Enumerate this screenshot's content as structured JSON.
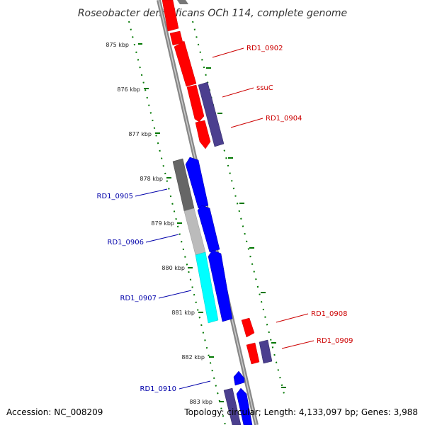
{
  "title": "Roseobacter denitrificans OCh 114, complete genome",
  "footer": {
    "accession": "Accession: NC_008209",
    "summary": "Topology: circular; Length: 4,133,097 bp; Genes: 3,988"
  },
  "colors": {
    "forward_gene": "#ff0000",
    "reverse_gene": "#0000ff",
    "other_gene": "#4b3f8f",
    "grey_gene_dark": "#666666",
    "grey_gene_light": "#bbbbbb",
    "cyan_gene": "#00ffff",
    "tick": "#007700",
    "backbone": "#888888",
    "forward_label": "#cc0000",
    "reverse_label": "#0000aa"
  },
  "ticks": [
    "875 kbp",
    "876 kbp",
    "877 kbp",
    "878 kbp",
    "879 kbp",
    "880 kbp",
    "881 kbp",
    "882 kbp",
    "883 kbp"
  ],
  "gene_labels": {
    "rd1_0902": "RD1_0902",
    "ssuc": "ssuC",
    "rd1_0904": "RD1_0904",
    "rd1_0905": "RD1_0905",
    "rd1_0906": "RD1_0906",
    "rd1_0907": "RD1_0907",
    "rd1_0908": "RD1_0908",
    "rd1_0909": "RD1_0909",
    "rd1_0910": "RD1_0910"
  }
}
